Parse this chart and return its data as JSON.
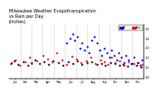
{
  "title": "Milwaukee Weather Evapotranspiration\nvs Rain per Day\n(Inches)",
  "title_fontsize": 3.5,
  "background_color": "#ffffff",
  "legend_et_label": "ET",
  "legend_rain_label": "Rain",
  "legend_et_color": "#0000ff",
  "legend_rain_color": "#ff0000",
  "ylim": [
    -0.02,
    0.55
  ],
  "yticks": [
    0.0,
    0.1,
    0.2,
    0.3,
    0.4,
    0.5
  ],
  "grid_color": "#aaaaaa",
  "et_color": "#0000ff",
  "rain_color": "#ff0000",
  "black_color": "#000000",
  "month_starts": [
    1,
    32,
    60,
    91,
    121,
    152,
    182,
    213,
    244,
    274,
    305,
    335,
    366
  ],
  "month_labels": [
    "Jan",
    "Feb",
    "Mar",
    "Apr",
    "May",
    "Jun",
    "Jul",
    "Aug",
    "Sep",
    "Oct",
    "Nov",
    "Dec"
  ],
  "rain_x": [
    8,
    18,
    30,
    45,
    55,
    62,
    75,
    92,
    105,
    118,
    130,
    145,
    155,
    170,
    183,
    195,
    210,
    222,
    235,
    248,
    258,
    268,
    278,
    288,
    300,
    312,
    325,
    338,
    350,
    360
  ],
  "rain_vals": [
    0.15,
    0.18,
    0.12,
    0.16,
    0.2,
    0.14,
    0.17,
    0.22,
    0.19,
    0.16,
    0.25,
    0.18,
    0.13,
    0.21,
    0.19,
    0.15,
    0.17,
    0.2,
    0.14,
    0.18,
    0.16,
    0.13,
    0.2,
    0.15,
    0.17,
    0.12,
    0.16,
    0.14,
    0.15,
    0.13
  ],
  "black_x": [
    5,
    15,
    25,
    38,
    50,
    60,
    70,
    82,
    95,
    108,
    120,
    133,
    147,
    160,
    173,
    186,
    198,
    212,
    225,
    238,
    250,
    262,
    275,
    287,
    299,
    310,
    322,
    334,
    346,
    358
  ],
  "black_vals": [
    0.14,
    0.17,
    0.13,
    0.16,
    0.12,
    0.15,
    0.18,
    0.14,
    0.16,
    0.13,
    0.17,
    0.15,
    0.12,
    0.16,
    0.14,
    0.17,
    0.13,
    0.15,
    0.16,
    0.13,
    0.14,
    0.12,
    0.15,
    0.14,
    0.12,
    0.13,
    0.11,
    0.14,
    0.12,
    0.1
  ],
  "et_x": [
    155,
    165,
    172,
    178,
    185,
    192,
    198,
    205,
    212,
    218,
    225,
    232,
    238,
    245,
    252,
    258,
    265,
    272,
    278,
    285,
    292,
    298,
    305,
    312,
    318,
    325,
    332,
    338,
    348,
    355,
    362
  ],
  "et_vals": [
    0.35,
    0.4,
    0.45,
    0.38,
    0.42,
    0.3,
    0.35,
    0.28,
    0.32,
    0.25,
    0.38,
    0.42,
    0.35,
    0.28,
    0.22,
    0.3,
    0.25,
    0.2,
    0.28,
    0.22,
    0.18,
    0.25,
    0.2,
    0.15,
    0.22,
    0.18,
    0.14,
    0.2,
    0.15,
    0.12,
    0.18
  ],
  "n_days": 365,
  "markersize": 2.5
}
